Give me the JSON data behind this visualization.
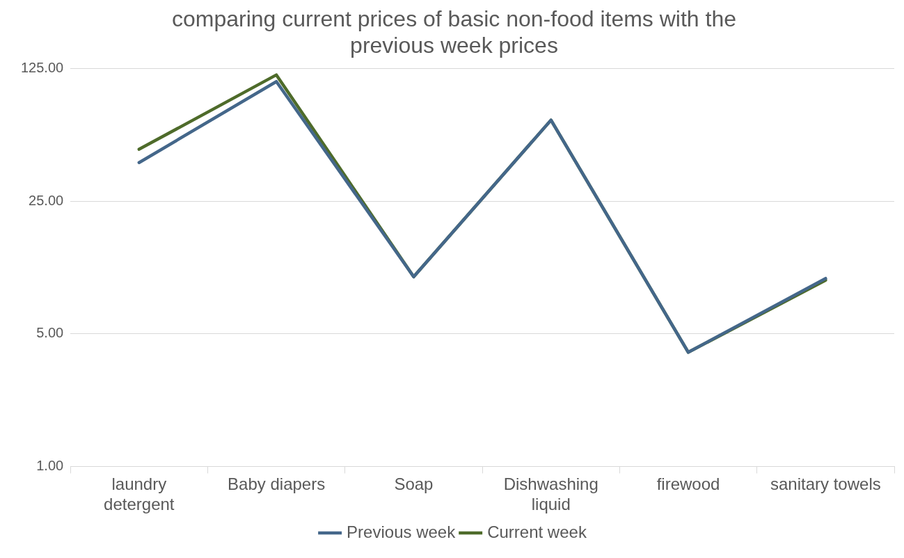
{
  "chart_data": {
    "type": "line",
    "title": "comparing current prices of basic non-food items with the previous week prices",
    "categories": [
      "laundry detergent",
      "Baby diapers",
      "Soap",
      "Dishwashing liquid",
      "firewood",
      "sanitary towels"
    ],
    "series": [
      {
        "name": "Previous week",
        "color": "#44678a",
        "values": [
          40,
          107,
          10,
          67,
          4,
          9.8
        ]
      },
      {
        "name": "Current week",
        "color": "#4e6b2a",
        "values": [
          47,
          116,
          10,
          67,
          4,
          9.6
        ]
      }
    ],
    "log": "y",
    "ylim": [
      1,
      125
    ],
    "yticks": [
      {
        "value": 1,
        "label": "1.00"
      },
      {
        "value": 5,
        "label": "5.00"
      },
      {
        "value": 25,
        "label": "25.00"
      },
      {
        "value": 125,
        "label": "125.00"
      }
    ],
    "grid": "y",
    "legend": "bottom",
    "marker": "none",
    "line_style": "solid"
  }
}
